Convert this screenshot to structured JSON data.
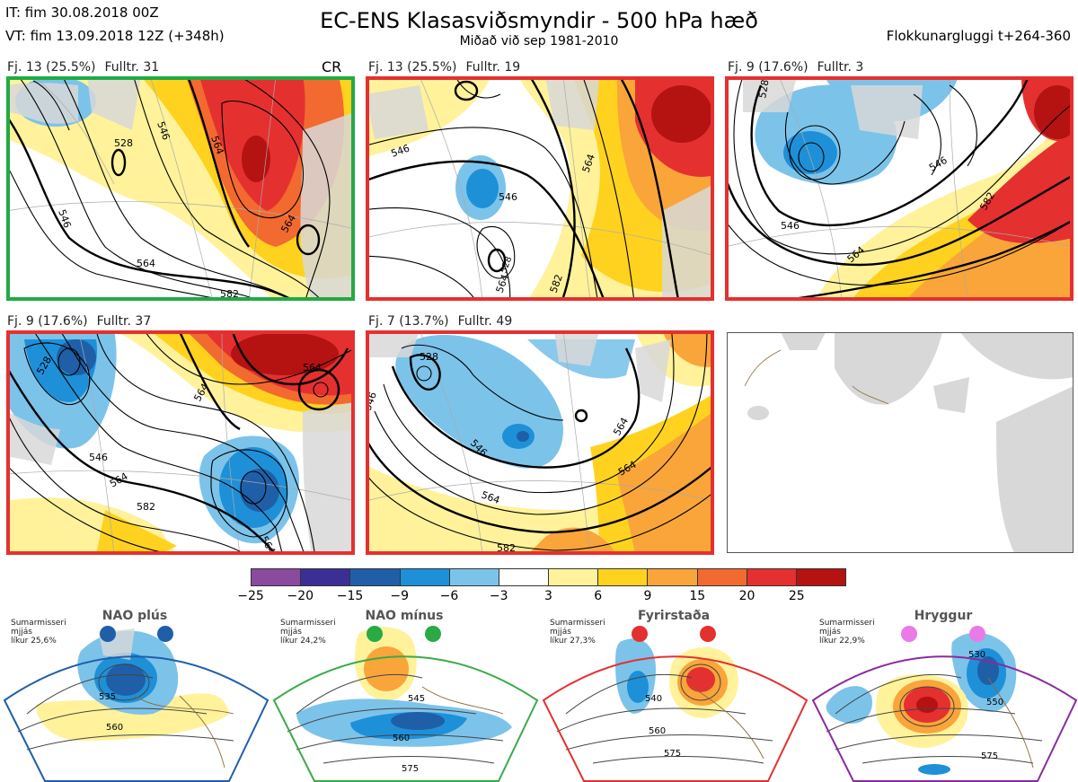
{
  "header": {
    "it": "IT: fim 30.08.2018 00Z",
    "vt": "VT: fim 13.09.2018 12Z  (+348h)",
    "title": "EC-ENS Klasasviðsmyndir - 500 hPa hæð",
    "subtitle": "Miðað við sep 1981-2010",
    "window": "Flokkunargluggi t+264-360"
  },
  "panels": [
    {
      "cluster": "Fj. 13 (25.5%)",
      "rep": "Fulltr. 31",
      "tag": "CR",
      "frame_color": "#22aa44",
      "contour_labels": [
        "528",
        "546",
        "564",
        "564",
        "582",
        "546",
        "564"
      ]
    },
    {
      "cluster": "Fj. 13 (25.5%)",
      "rep": "Fulltr. 19",
      "tag": "",
      "frame_color": "#e53030",
      "contour_labels": [
        "546",
        "546",
        "564",
        "582",
        "564",
        "528"
      ]
    },
    {
      "cluster": "Fj. 9 (17.6%)",
      "rep": "Fulltr. 3",
      "tag": "",
      "frame_color": "#e53030",
      "contour_labels": [
        "528",
        "546",
        "564",
        "582",
        "546"
      ]
    },
    {
      "cluster": "Fj. 9 (17.6%)",
      "rep": "Fulltr. 37",
      "tag": "",
      "frame_color": "#e53030",
      "contour_labels": [
        "528",
        "546",
        "564",
        "582",
        "564",
        "564",
        "564"
      ]
    },
    {
      "cluster": "Fj. 7 (13.7%)",
      "rep": "Fulltr. 49",
      "tag": "",
      "frame_color": "#e53030",
      "contour_labels": [
        "528",
        "546",
        "546",
        "564",
        "564",
        "582",
        "564"
      ]
    }
  ],
  "colorbar": {
    "ticks": [
      "−25",
      "−20",
      "−15",
      "−9",
      "−6",
      "−3",
      "3",
      "6",
      "9",
      "15",
      "20",
      "25"
    ],
    "colors": [
      "#8a4a9e",
      "#3b2f96",
      "#1f5fa8",
      "#1e90d8",
      "#7cc3ea",
      "#ffffff",
      "#fff29a",
      "#ffd21f",
      "#f9a53a",
      "#f26a2f",
      "#e53030",
      "#b51212"
    ]
  },
  "regimes": [
    {
      "name": "NAO plús",
      "note": "Sumarmisseri\nmjjás\nlíkur 25,6%",
      "color": "#1f5fa8",
      "dot_color": "#1f5fa8",
      "contour_labels": [
        "535",
        "560"
      ]
    },
    {
      "name": "NAO mínus",
      "note": "Sumarmisseri\nmjjás\nlíkur 24,2%",
      "color": "#3aaa4a",
      "dot_color": "#2aaa44",
      "contour_labels": [
        "545",
        "560",
        "575"
      ]
    },
    {
      "name": "Fyrirstaða",
      "note": "Sumarmisseri\nmjjás\nlíkur 27,3%",
      "color": "#e53030",
      "dot_color": "#e53030",
      "contour_labels": [
        "540",
        "560",
        "575"
      ]
    },
    {
      "name": "Hryggur",
      "note": "Sumarmisseri\nmjjás\nlíkur 22,9%",
      "color": "#8a2a9e",
      "dot_color": "#ea7ae8",
      "contour_labels": [
        "530",
        "550",
        "575"
      ]
    }
  ]
}
